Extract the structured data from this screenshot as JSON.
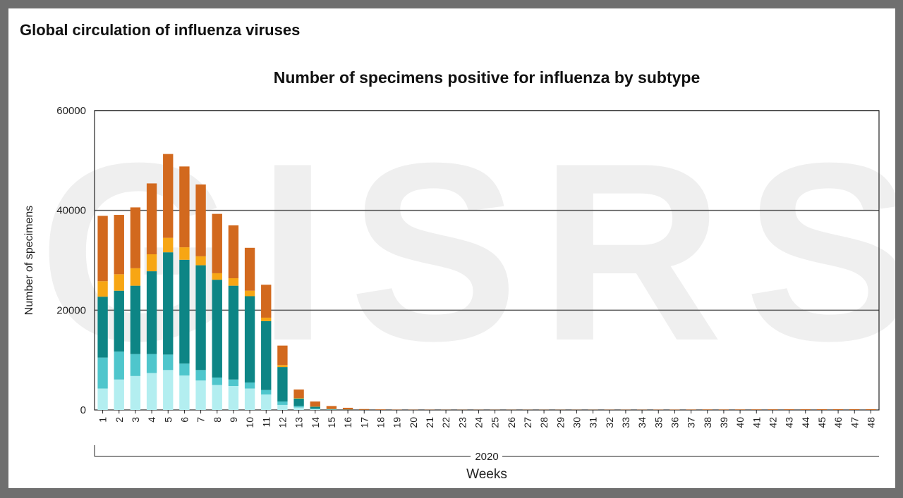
{
  "page": {
    "title": "Global circulation of influenza viruses"
  },
  "colors": {
    "frame": "#6f6f6f",
    "watermark": "#efefef",
    "series": [
      "#b3eef0",
      "#4fc6cc",
      "#0d8585",
      "#f7a614",
      "#d2691e"
    ]
  },
  "chart_data": {
    "type": "bar",
    "stacked": true,
    "title": "Number of specimens positive for influenza by subtype",
    "xlabel": "Weeks",
    "xgroup_label": "2020",
    "ylabel": "Number of specimens",
    "ylim": [
      0,
      60000
    ],
    "yticks": [
      0,
      20000,
      40000,
      60000
    ],
    "grid": true,
    "watermark": "GISRS",
    "categories": [
      "1",
      "2",
      "3",
      "4",
      "5",
      "6",
      "7",
      "8",
      "9",
      "10",
      "11",
      "12",
      "13",
      "14",
      "15",
      "16",
      "17",
      "18",
      "19",
      "20",
      "21",
      "22",
      "23",
      "24",
      "25",
      "26",
      "27",
      "28",
      "29",
      "30",
      "31",
      "32",
      "33",
      "34",
      "35",
      "36",
      "37",
      "38",
      "39",
      "40",
      "41",
      "42",
      "43",
      "44",
      "45",
      "46",
      "47",
      "48"
    ],
    "series": [
      {
        "values": [
          4300,
          6100,
          6800,
          7400,
          8000,
          6900,
          5900,
          5000,
          4800,
          4300,
          3100,
          1000,
          500,
          150,
          60,
          30,
          10,
          5,
          5,
          5,
          5,
          5,
          5,
          5,
          5,
          5,
          5,
          5,
          5,
          5,
          5,
          5,
          5,
          5,
          5,
          5,
          5,
          5,
          5,
          5,
          5,
          5,
          5,
          5,
          5,
          5,
          5,
          5
        ]
      },
      {
        "values": [
          6200,
          5600,
          4400,
          3800,
          3100,
          2400,
          2100,
          1500,
          1300,
          1200,
          900,
          700,
          300,
          100,
          30,
          15,
          5,
          2,
          2,
          2,
          2,
          2,
          2,
          2,
          2,
          2,
          2,
          2,
          2,
          2,
          2,
          2,
          2,
          2,
          2,
          2,
          2,
          2,
          2,
          2,
          2,
          2,
          2,
          2,
          2,
          2,
          2,
          2
        ]
      },
      {
        "values": [
          12200,
          12200,
          13700,
          16600,
          20500,
          20800,
          21000,
          19600,
          18800,
          17300,
          13800,
          6900,
          1500,
          400,
          80,
          30,
          10,
          5,
          5,
          5,
          5,
          5,
          5,
          5,
          5,
          5,
          5,
          5,
          5,
          5,
          5,
          5,
          5,
          5,
          5,
          5,
          5,
          5,
          5,
          5,
          5,
          5,
          5,
          5,
          5,
          5,
          5,
          5
        ]
      },
      {
        "values": [
          3100,
          3300,
          3500,
          3400,
          2900,
          2500,
          1800,
          1300,
          1500,
          1100,
          700,
          400,
          100,
          50,
          20,
          10,
          5,
          2,
          2,
          2,
          2,
          2,
          2,
          2,
          2,
          2,
          2,
          2,
          2,
          2,
          2,
          2,
          2,
          2,
          2,
          2,
          2,
          2,
          2,
          2,
          2,
          2,
          2,
          2,
          2,
          2,
          2,
          2
        ]
      },
      {
        "values": [
          13100,
          11900,
          12200,
          14200,
          16800,
          16200,
          14400,
          11900,
          10600,
          8600,
          6600,
          3900,
          1700,
          1000,
          600,
          350,
          150,
          100,
          50,
          40,
          40,
          30,
          30,
          30,
          30,
          30,
          30,
          30,
          30,
          30,
          30,
          40,
          40,
          40,
          50,
          60,
          70,
          90,
          80,
          90,
          100,
          110,
          120,
          120,
          130,
          130,
          140,
          140
        ]
      }
    ]
  }
}
